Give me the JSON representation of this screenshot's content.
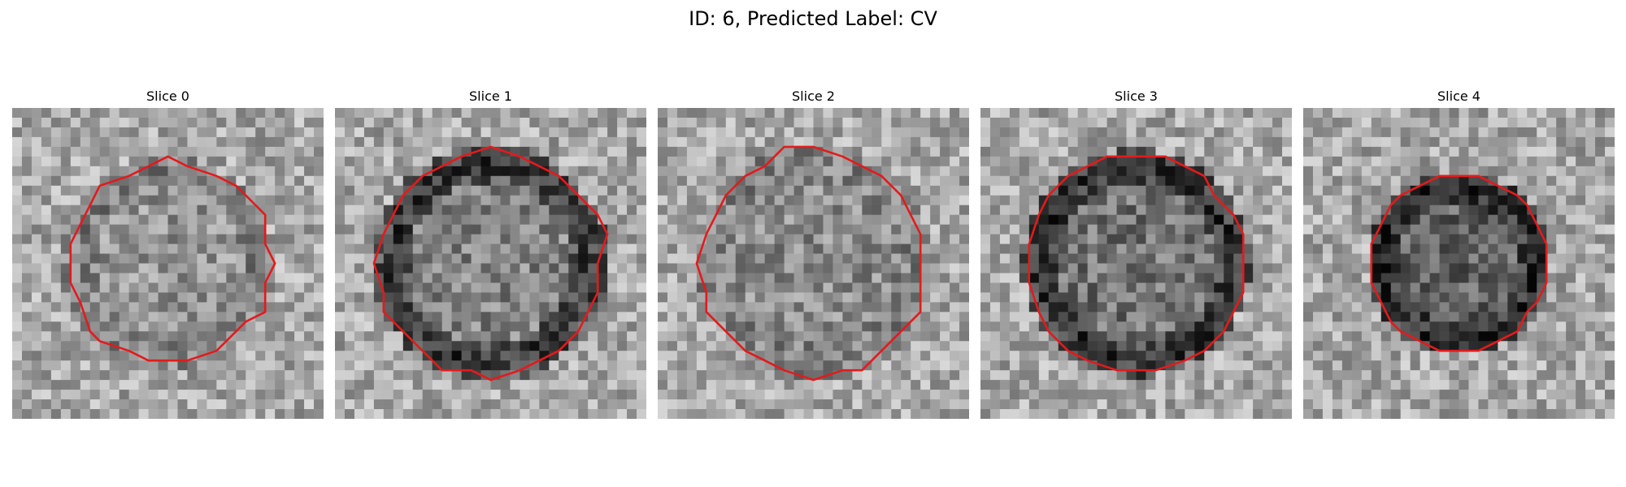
{
  "figure": {
    "title": "ID: 6, Predicted Label: CV"
  },
  "panels": [
    {
      "title": "Slice 0",
      "seed": 11,
      "ring_contrast": 0.18,
      "center_level": 0.58,
      "contour_scale": 0.9
    },
    {
      "title": "Slice 1",
      "seed": 23,
      "ring_contrast": 0.65,
      "center_level": 0.52,
      "contour_scale": 1.0
    },
    {
      "title": "Slice 2",
      "seed": 37,
      "ring_contrast": 0.08,
      "center_level": 0.55,
      "contour_scale": 1.0
    },
    {
      "title": "Slice 3",
      "seed": 41,
      "ring_contrast": 0.55,
      "center_level": 0.45,
      "contour_scale": 0.97
    },
    {
      "title": "Slice 4",
      "seed": 59,
      "ring_contrast": 0.45,
      "center_level": 0.38,
      "contour_scale": 0.78
    }
  ],
  "colors": {
    "contour": "#e41a1c",
    "background": "#ffffff"
  },
  "colormap": "gray"
}
